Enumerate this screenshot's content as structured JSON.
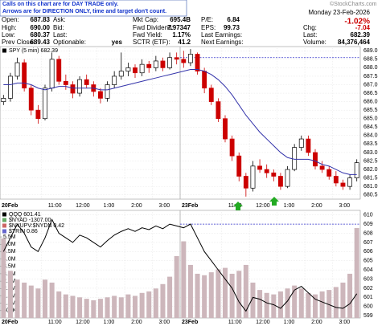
{
  "notice": [
    "Calls on this chart are for DAY TRADE only.",
    "Arrows are for DIRECTION ONLY, time and target don't count."
  ],
  "brand": "©StockCharts.com",
  "date": "Monday  23-Feb-2026",
  "quote": [
    [
      {
        "label": "Open:",
        "value": "687.83"
      },
      {
        "label": "Ask:"
      },
      {
        "label": "Mkt Cap:",
        "value": "695.4B"
      },
      {
        "label": "P/E:",
        "value": "6.84"
      }
    ],
    [
      {
        "label": "High:",
        "value": "690.00"
      },
      {
        "label": "Bid:"
      },
      {
        "label": "Fwd Dividend:",
        "value": "7.97347"
      },
      {
        "label": "EPS:",
        "value": "99.73"
      }
    ],
    [
      {
        "label": "Low:",
        "value": "680.37"
      },
      {
        "label": "Last:"
      },
      {
        "label": "Fwd Yield:",
        "value": "1.17%"
      },
      {
        "label": "Last Earnings:"
      }
    ],
    [
      {
        "label": "Prev Close:",
        "value": "689.43"
      },
      {
        "label": "Optionable:",
        "value": "yes"
      },
      {
        "label": "SCTR (ETF):",
        "value": "41.2"
      },
      {
        "label": "Next Earnings:"
      }
    ]
  ],
  "summary": {
    "change_pct": "-1.02%",
    "rows": [
      {
        "label": "Chg:",
        "value": "-7.04"
      },
      {
        "label": "Last:",
        "value": "682.39"
      },
      {
        "label": "Volume:",
        "value": "84,376,464"
      }
    ]
  },
  "chart_data": [
    {
      "type": "candlestick",
      "xlim": [
        0,
        52
      ],
      "xticks": [
        {
          "value": 0,
          "label": "20Feb"
        },
        {
          "value": 6,
          "label": "11:00"
        },
        {
          "value": 10,
          "label": "12:00"
        },
        {
          "value": 14,
          "label": "1:00"
        },
        {
          "value": 18,
          "label": "2:00"
        },
        {
          "value": 22,
          "label": "3:00"
        },
        {
          "value": 26,
          "label": "23Feb"
        },
        {
          "value": 32,
          "label": "11:00"
        },
        {
          "value": 36,
          "label": "12:00"
        },
        {
          "value": 40,
          "label": "1:00"
        },
        {
          "value": 44,
          "label": "2:00"
        },
        {
          "value": 48,
          "label": "3:00"
        }
      ],
      "ylim": [
        680.25,
        689.25
      ],
      "yticks": [
        {
          "value": 689,
          "label": "689.0"
        },
        688.5,
        {
          "value": 688,
          "label": "688.0"
        },
        687.5,
        {
          "value": 687,
          "label": "687.0"
        },
        686.5,
        {
          "value": 686,
          "label": "686.0"
        },
        685.5,
        {
          "value": 685,
          "label": "685.0"
        },
        684.5,
        {
          "value": 684,
          "label": "684.0"
        },
        683.5,
        {
          "value": 683,
          "label": "683.0"
        },
        682.5,
        {
          "value": 682,
          "label": "682.0"
        },
        681.5,
        {
          "value": 681,
          "label": "681.0"
        },
        680.5
      ],
      "grid": true,
      "reference_line": {
        "value": 688.6,
        "from": 26,
        "color": "#3333cc"
      },
      "series": [
        {
          "name": "SPY (5 min) 682.39",
          "up_color": "#000000",
          "down_color": "#cc0000",
          "open": [
            686.0,
            686.2,
            687.5,
            688.3,
            686.8,
            685.5,
            685.0,
            686.8,
            688.5,
            687.2,
            687.0,
            686.5,
            687.3,
            687.0,
            686.6,
            686.2,
            687.0,
            687.5,
            687.8,
            688.0,
            687.7,
            688.2,
            688.0,
            688.4,
            688.0,
            688.6,
            688.5,
            688.3,
            688.8,
            687.8,
            686.8,
            686.0,
            685.0,
            683.8,
            682.8,
            681.6,
            680.9,
            682.2,
            682.0,
            681.8,
            681.6,
            681.0,
            682.0,
            683.3,
            683.8,
            683.0,
            682.2,
            682.0,
            681.6,
            681.2,
            681.0,
            681.5
          ],
          "high": [
            686.4,
            687.7,
            688.6,
            688.5,
            687.0,
            685.8,
            687.0,
            688.9,
            688.7,
            687.6,
            687.2,
            687.5,
            687.6,
            687.2,
            686.8,
            687.2,
            687.8,
            688.9,
            688.3,
            688.2,
            688.5,
            688.4,
            688.7,
            688.6,
            688.9,
            688.9,
            689.0,
            689.1,
            688.9,
            688.0,
            687.0,
            686.2,
            685.2,
            684.0,
            683.0,
            681.8,
            682.5,
            682.6,
            682.3,
            682.0,
            681.8,
            682.2,
            683.5,
            684.0,
            684.0,
            683.2,
            682.5,
            682.2,
            681.9,
            681.4,
            681.7,
            682.6
          ],
          "low": [
            685.8,
            686.0,
            687.3,
            686.6,
            685.2,
            684.7,
            684.9,
            686.6,
            687.0,
            686.7,
            686.2,
            686.3,
            686.8,
            686.3,
            685.9,
            686.0,
            686.8,
            687.3,
            687.5,
            687.4,
            687.5,
            687.7,
            687.8,
            687.8,
            687.9,
            688.2,
            688.0,
            688.1,
            687.6,
            686.5,
            685.8,
            684.8,
            683.6,
            682.5,
            681.3,
            680.4,
            680.7,
            681.8,
            681.5,
            681.3,
            680.8,
            680.9,
            681.9,
            683.1,
            682.8,
            682.0,
            681.8,
            681.4,
            681.0,
            680.8,
            680.8,
            681.3
          ],
          "close": [
            686.2,
            687.5,
            688.3,
            686.8,
            685.5,
            685.0,
            686.8,
            688.5,
            687.2,
            687.0,
            686.5,
            687.3,
            687.0,
            686.6,
            686.2,
            687.0,
            687.5,
            687.8,
            688.0,
            687.7,
            688.2,
            688.0,
            688.4,
            688.0,
            688.6,
            688.5,
            688.3,
            688.8,
            687.8,
            686.8,
            686.0,
            685.0,
            683.8,
            682.8,
            681.6,
            680.9,
            682.2,
            682.0,
            681.8,
            681.6,
            681.0,
            682.0,
            683.3,
            683.8,
            683.0,
            682.2,
            682.0,
            681.6,
            681.2,
            681.0,
            681.5,
            682.4
          ]
        },
        {
          "type": "line",
          "color": "#3333aa",
          "values": [
            687.0,
            687.0,
            687.1,
            687.1,
            687.0,
            686.8,
            686.7,
            686.8,
            686.9,
            686.9,
            686.8,
            686.8,
            686.8,
            686.8,
            686.7,
            686.7,
            686.8,
            686.9,
            687.0,
            687.1,
            687.2,
            687.3,
            687.4,
            687.5,
            687.6,
            687.7,
            687.8,
            687.9,
            687.9,
            687.8,
            687.6,
            687.3,
            686.9,
            686.4,
            685.8,
            685.2,
            684.7,
            684.2,
            683.8,
            683.4,
            683.0,
            682.7,
            682.6,
            682.6,
            682.6,
            682.5,
            682.3,
            682.2,
            682.0,
            681.8,
            681.7,
            681.7
          ]
        }
      ]
    },
    {
      "type": "line",
      "xlim": [
        0,
        52
      ],
      "xticks": [
        {
          "value": 0,
          "label": "20Feb"
        },
        {
          "value": 6,
          "label": "11:00"
        },
        {
          "value": 10,
          "label": "12:00"
        },
        {
          "value": 14,
          "label": "1:00"
        },
        {
          "value": 18,
          "label": "2:00"
        },
        {
          "value": 22,
          "label": "3:00"
        },
        {
          "value": 26,
          "label": "23Feb"
        },
        {
          "value": 32,
          "label": "11:00"
        },
        {
          "value": 36,
          "label": "12:00"
        },
        {
          "value": 40,
          "label": "1:00"
        },
        {
          "value": 44,
          "label": "2:00"
        },
        {
          "value": 48,
          "label": "3:00"
        }
      ],
      "ylim": [
        598.75,
        610.5
      ],
      "yticks": [
        610,
        609,
        608,
        607,
        606,
        605,
        604,
        603,
        602,
        601,
        600,
        599
      ],
      "y2lim": [
        0,
        7300000
      ],
      "y2ticks": [
        {
          "value": 5500000,
          "label": "5.5M"
        },
        {
          "value": 5000000,
          "label": "5.0M"
        },
        {
          "value": 4500000,
          "label": "4.5M"
        },
        {
          "value": 4000000,
          "label": "4.0M"
        },
        {
          "value": 3500000,
          "label": "3.5M"
        },
        {
          "value": 3000000,
          "label": "3.0M"
        },
        {
          "value": 2500000,
          "label": "2.5M"
        },
        {
          "value": 2000000,
          "label": "2.0M"
        },
        {
          "value": 1500000,
          "label": "1.5M"
        },
        {
          "value": 1000000,
          "label": "1.0M"
        },
        {
          "value": 500000,
          "label": "500K"
        }
      ],
      "grid": true,
      "reference_line": {
        "value": 609,
        "from": 26,
        "color": "#3333cc"
      },
      "overlays": [
        "$NYAD -1307.00",
        "$NYUPV:$NYDN 0.42",
        "$TRIN 0.86"
      ],
      "series": [
        {
          "name": "QQQ 601.41",
          "type": "line",
          "color": "#000000",
          "values": [
            606.0,
            607.5,
            609.0,
            608.0,
            606.5,
            606.0,
            607.5,
            609.5,
            608.0,
            607.5,
            607.0,
            607.8,
            607.5,
            607.0,
            606.5,
            607.2,
            607.8,
            608.2,
            608.5,
            608.2,
            608.6,
            608.4,
            608.8,
            608.5,
            609.0,
            608.8,
            608.6,
            609.0,
            607.5,
            606.0,
            605.0,
            604.0,
            603.0,
            602.0,
            600.5,
            599.5,
            601.0,
            600.8,
            600.4,
            600.2,
            599.8,
            600.6,
            601.8,
            602.2,
            601.5,
            600.8,
            600.5,
            600.2,
            599.9,
            599.8,
            600.3,
            601.4
          ]
        },
        {
          "type": "bar",
          "axis": "y2",
          "color": "#cdb6bb",
          "values": [
            5400000,
            3200000,
            2600000,
            2400000,
            2200000,
            2000000,
            2600000,
            2400000,
            1800000,
            1600000,
            1500000,
            1400000,
            1300000,
            1200000,
            1300000,
            1400000,
            1500000,
            1400000,
            1600000,
            1500000,
            1700000,
            1800000,
            2000000,
            2300000,
            2800000,
            4200000,
            5200000,
            3600000,
            3000000,
            2900000,
            3100000,
            3300000,
            3400000,
            3000000,
            3200000,
            3600000,
            2400000,
            1900000,
            1700000,
            1600000,
            1800000,
            2000000,
            2200000,
            2000000,
            1700000,
            1600000,
            1800000,
            1900000,
            2100000,
            2400000,
            3000000,
            6100000
          ]
        }
      ]
    }
  ]
}
